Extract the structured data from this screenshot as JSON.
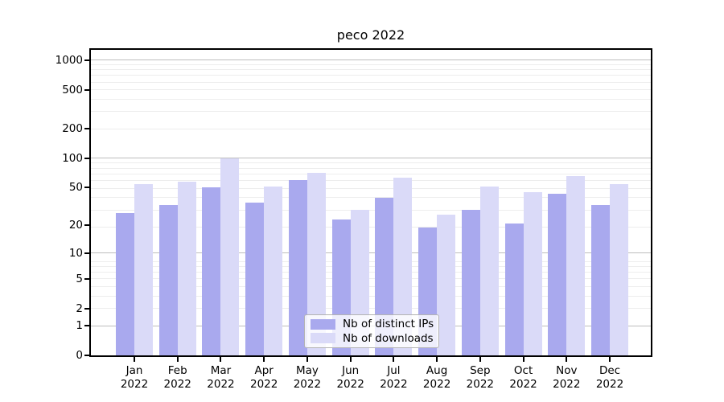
{
  "title": "peco 2022",
  "chart_data": {
    "type": "bar",
    "title": "peco 2022",
    "categories": [
      "Jan 2022",
      "Feb 2022",
      "Mar 2022",
      "Apr 2022",
      "May 2022",
      "Jun 2022",
      "Jul 2022",
      "Aug 2022",
      "Sep 2022",
      "Oct 2022",
      "Nov 2022",
      "Dec 2022"
    ],
    "x_tick_months": [
      "Jan",
      "Feb",
      "Mar",
      "Apr",
      "May",
      "Jun",
      "Jul",
      "Aug",
      "Sep",
      "Oct",
      "Nov",
      "Dec"
    ],
    "x_tick_year": "2022",
    "series": [
      {
        "name": "Nb of distinct IPs",
        "color": "#a9a9ee",
        "values": [
          27,
          33,
          50,
          35,
          59,
          23,
          39,
          19,
          29,
          21,
          43,
          33
        ]
      },
      {
        "name": "Nb of downloads",
        "color": "#dadaf8",
        "values": [
          54,
          57,
          100,
          51,
          71,
          29,
          63,
          26,
          51,
          45,
          65,
          54
        ]
      }
    ],
    "xlabel": "",
    "ylabel": "",
    "yscale": "log1p",
    "ylim": [
      0,
      1274
    ],
    "y_ticks": [
      0,
      1,
      2,
      5,
      10,
      20,
      50,
      100,
      200,
      500,
      1000
    ],
    "grid": "horizontal; light minor lines, darker lines at 1, 10, 100, 1000",
    "legend_position": "lower center inside plot"
  },
  "legend": {
    "items": [
      {
        "label": "Nb of distinct IPs",
        "color": "#a9a9ee"
      },
      {
        "label": "Nb of downloads",
        "color": "#dadaf8"
      }
    ]
  },
  "colors": {
    "bar_dark": "#a9a9ee",
    "bar_light": "#dadaf8",
    "grid_minor": "#ededed",
    "grid_major": "#bdbdbd",
    "axis": "#000000",
    "background": "#ffffff"
  }
}
